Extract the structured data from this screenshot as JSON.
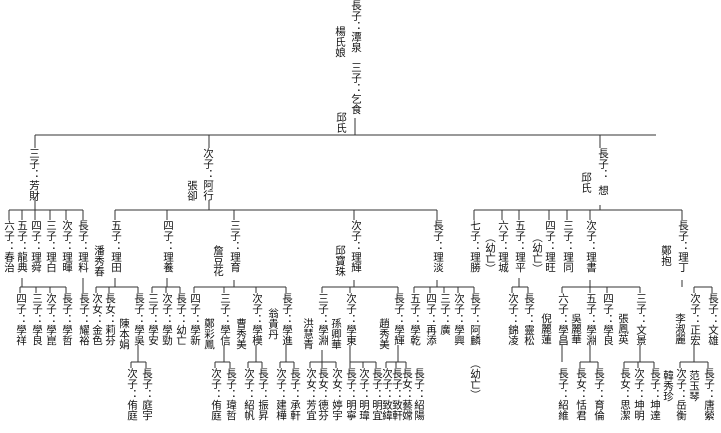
{
  "root": {
    "col1": "長子：潭泉",
    "col2": "楊氏娘",
    "col3": "三子：乞食",
    "col4": "邱氏"
  },
  "gen2": [
    {
      "col1": "三子：",
      "col2": "芳財"
    },
    {
      "col1": "次子：阿行",
      "col2": "張卻"
    },
    {
      "col1": "長子：",
      "col2": "邱氏",
      "col3": "想"
    }
  ],
  "gen3": [
    {
      "col1": "六子：",
      "col2": "春治"
    },
    {
      "col1": "五子：",
      "col2": "龍典"
    },
    {
      "col1": "四子：",
      "col2": "理舜"
    },
    {
      "col1": "三子：",
      "col2": "理白"
    },
    {
      "col1": "次子：",
      "col2": "理暉"
    },
    {
      "col1": "長子：",
      "col2": "理料"
    },
    {
      "col1": "五子：",
      "col2": "理田"
    },
    {
      "col1": "潘秀春"
    },
    {
      "col1": "四子：",
      "col2": "理養"
    },
    {
      "col1": "三子：",
      "col2": "理育"
    },
    {
      "col1": "詹豆花"
    },
    {
      "col1": "次子：",
      "col2": "理輝"
    },
    {
      "col1": "邱寶珠"
    },
    {
      "col1": "長子：",
      "col2": "理淡"
    },
    {
      "col1": "七子：",
      "col2": "理勝"
    },
    {
      "col1": "（幼亡）"
    },
    {
      "col1": "六子：",
      "col2": "理城"
    },
    {
      "col1": "五子：",
      "col2": "理平"
    },
    {
      "col1": "四子：",
      "col2": "理旺"
    },
    {
      "col1": "（幼亡）"
    },
    {
      "col1": "三子：",
      "col2": "理同"
    },
    {
      "col1": "次子：",
      "col2": "理書"
    },
    {
      "col1": "長子：",
      "col2": "理丁"
    },
    {
      "col1": "鄭抱"
    }
  ],
  "gen4": [
    {
      "col1": "四子：",
      "col2": "學祥"
    },
    {
      "col1": "三子：",
      "col2": "學良"
    },
    {
      "col1": "次子：",
      "col2": "學崑"
    },
    {
      "col1": "長子：",
      "col2": "學哲"
    },
    {
      "col1": "長子：",
      "col2": "耀裕"
    },
    {
      "col1": "次女：",
      "col2": "金色"
    },
    {
      "col1": "長女：",
      "col2": "莉芬"
    },
    {
      "col1": "長子：",
      "col2": "學吳"
    },
    {
      "col1": "陳本娟"
    },
    {
      "col1": "三子：",
      "col2": "學安"
    },
    {
      "col1": "次子：",
      "col2": "學勁"
    },
    {
      "col1": "長子：",
      "col2": "幼亡"
    },
    {
      "col1": "四子：",
      "col2": "學新"
    },
    {
      "col1": "鄭彩鳳"
    },
    {
      "col1": "三子：",
      "col2": "學信"
    },
    {
      "col1": "曹秀美"
    },
    {
      "col1": "次子：",
      "col2": "學模"
    },
    {
      "col1": "翁貴丹"
    },
    {
      "col1": "長子：",
      "col2": "學進"
    },
    {
      "col1": "三子：",
      "col2": "學淵"
    },
    {
      "col1": "洪慧青"
    },
    {
      "col1": "次子：",
      "col2": "學東"
    },
    {
      "col1": "孫卿華"
    },
    {
      "col1": "長子：",
      "col2": "學輝"
    },
    {
      "col1": "趙秀美"
    },
    {
      "col1": "五子：",
      "col2": "學乾"
    },
    {
      "col1": "四子：",
      "col2": "再添"
    },
    {
      "col1": "三子：",
      "col2": "廣"
    },
    {
      "col1": "次子：",
      "col2": "學興"
    },
    {
      "col1": "長子：",
      "col2": "阿麟"
    },
    {
      "col1": "（幼亡）"
    },
    {
      "col1": "次子：",
      "col2": "錦凌"
    },
    {
      "col1": "長子：",
      "col2": "靈松"
    },
    {
      "col1": "六子：",
      "col2": "學昌"
    },
    {
      "col1": "倪麗蓮"
    },
    {
      "col1": "五子：",
      "col2": "學淵"
    },
    {
      "col1": "吳麗華"
    },
    {
      "col1": "四子：",
      "col2": "學良"
    },
    {
      "col1": "張鳳英"
    },
    {
      "col1": "三子：",
      "col2": "文景"
    },
    {
      "col1": "次子：",
      "col2": "正宏"
    },
    {
      "col1": "李淑麗"
    },
    {
      "col1": "長子：",
      "col2": "文雄"
    }
  ],
  "gen5": [
    {
      "col1": "長子：",
      "col2": "庭宇"
    },
    {
      "col1": "次子：",
      "col2": "侑庭"
    },
    {
      "col1": "長子：",
      "col2": "瑋哲"
    },
    {
      "col1": "次子：",
      "col2": "侑庭"
    },
    {
      "col1": "次子：",
      "col2": "紹帆"
    },
    {
      "col1": "長子：",
      "col2": "振昇"
    },
    {
      "col1": "次子：",
      "col2": "建樺"
    },
    {
      "col1": "長子：",
      "col2": "承軒"
    },
    {
      "col1": "次女：",
      "col2": "芳宜"
    },
    {
      "col1": "長女：",
      "col2": "德芬"
    },
    {
      "col1": "次女：",
      "col2": "婷宇"
    },
    {
      "col1": "長子：",
      "col2": "明寧"
    },
    {
      "col1": "次子：",
      "col2": "明瑋"
    },
    {
      "col1": "長子：",
      "col2": "明宜"
    },
    {
      "col1": "次子：",
      "col2": "致緯"
    },
    {
      "col1": "長子：",
      "col2": "致軒"
    },
    {
      "col1": "長女：",
      "col2": "藝嫦"
    },
    {
      "col1": "長子：",
      "col2": "紹陽"
    },
    {
      "col1": "長子：",
      "col2": "紹維"
    },
    {
      "col1": "長女：",
      "col2": "恬君"
    },
    {
      "col1": "長子：",
      "col2": "育倫"
    },
    {
      "col1": "長女：",
      "col2": "思潔"
    },
    {
      "col1": "次子：",
      "col2": "坤明"
    },
    {
      "col1": "長子：",
      "col2": "坤達"
    },
    {
      "col1": "韓秀珍"
    },
    {
      "col1": "次子：",
      "col2": "岳衡"
    },
    {
      "col1": "范玉琴"
    },
    {
      "col1": "長子：",
      "col2": "唐縈"
    }
  ]
}
